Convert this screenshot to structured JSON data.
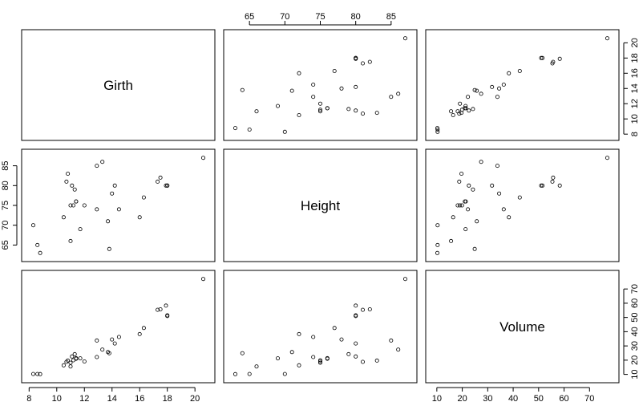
{
  "chart_data": {
    "type": "scatter",
    "variables": [
      "Girth",
      "Height",
      "Volume"
    ],
    "girth": [
      8.3,
      8.6,
      8.8,
      10.5,
      10.7,
      10.8,
      11.0,
      11.0,
      11.1,
      11.2,
      11.3,
      11.4,
      11.4,
      11.7,
      12.0,
      12.9,
      12.9,
      13.3,
      13.7,
      13.8,
      14.0,
      14.2,
      14.5,
      16.0,
      16.3,
      17.3,
      17.5,
      17.9,
      18.0,
      18.0,
      20.6
    ],
    "height": [
      70,
      65,
      63,
      72,
      81,
      83,
      66,
      75,
      80,
      75,
      79,
      76,
      76,
      69,
      75,
      74,
      85,
      86,
      71,
      64,
      78,
      80,
      74,
      72,
      77,
      81,
      82,
      80,
      80,
      80,
      87
    ],
    "volume": [
      10.3,
      10.3,
      10.2,
      16.4,
      18.8,
      19.7,
      15.6,
      18.2,
      22.6,
      19.9,
      24.2,
      21.0,
      21.4,
      21.3,
      19.1,
      22.2,
      33.8,
      27.4,
      25.7,
      24.9,
      34.5,
      31.7,
      36.3,
      38.3,
      42.6,
      55.4,
      55.7,
      58.3,
      51.5,
      51.0,
      77.0
    ],
    "axis_ticks": {
      "girth": [
        "8",
        "10",
        "12",
        "14",
        "16",
        "18",
        "20"
      ],
      "height": [
        "65",
        "70",
        "75",
        "80",
        "85"
      ],
      "volume": [
        "10",
        "20",
        "30",
        "40",
        "50",
        "60",
        "70"
      ]
    }
  }
}
